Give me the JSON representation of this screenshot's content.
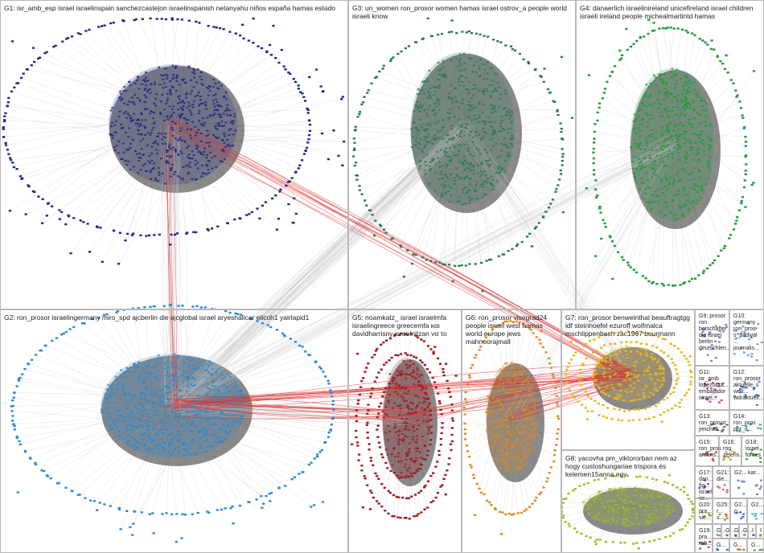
{
  "colors": {
    "background": "#ffffff",
    "panel_border": "#b9b9b9",
    "intra_edge": "#c8c8c8",
    "inter_edge": "#e03030",
    "shadow": "#2a2a2a"
  },
  "groups": [
    {
      "id": "G1",
      "title": "G1: isr_amb_esp israel israelinspain sanchezcastejon israelinspanish netanyahu niños españa hamas estado",
      "color": "#1f2a80",
      "icon": "person-icon"
    },
    {
      "id": "G2",
      "title": "G2: ron_prosor israelingermany miro_spd ajcberlin die ajcglobal israel aryeshalicar elicoh1 yairlapid1",
      "color": "#2a8ad4",
      "icon": "person-icon"
    },
    {
      "id": "G3",
      "title": "G3: un_women ron_prosor women hamas israel ostrov_a people world israeli know",
      "color": "#2d7a56",
      "icon": "person-icon"
    },
    {
      "id": "G4",
      "title": "G4: danaerlich israelinireland unicefireland israel children israeli ireland people michealmartintd hamas",
      "color": "#1e9a3a",
      "icon": "person-icon"
    },
    {
      "id": "G5",
      "title": "G5: noamkatz_ israel israelmfa israelingreece greecemfa και davidharrisny israelnitzan να το",
      "color": "#a01a20",
      "icon": "person-icon"
    },
    {
      "id": "G6",
      "title": "G6: ron_prosor visegrad24 people israel west hamas world europe jews mahnoorajmall",
      "color": "#e08a20",
      "icon": "person-icon"
    },
    {
      "id": "G7",
      "title": "G7: ron_prosor benweinthal beauftragtgg idf steinhoefel ezuroff wolfmalca mschlippenbach zac1967 buurmann",
      "color": "#e6b81e",
      "icon": "person-icon"
    },
    {
      "id": "G8",
      "title": "G8: yacovha pm_viktororban nem az hogy custoshungariae trispora és kelemen15anna egy",
      "color": "#9ac21e",
      "icon": "person-icon"
    },
    {
      "id": "G9",
      "title": "G9: prosor ron botschafter die israel berlin deutschlen...",
      "color": "#9a7ac8",
      "icon": "person-icon"
    },
    {
      "id": "G10",
      "title": "G10: germany ron_pros s_padiyal ... journalis...",
      "color": "#7a9ad8",
      "icon": "person-icon"
    },
    {
      "id": "G11",
      "title": "G11: isr_amb lopezobra... embajador israel...",
      "color": "#b84aa0",
      "icon": "person-icon"
    },
    {
      "id": "G12",
      "title": "G12: ron_prosor aktuelle_s welt... wdraktuell...",
      "color": "#4a88c8",
      "icon": "person-icon"
    },
    {
      "id": "G13",
      "title": "G13: ron_prosor jreichelt...",
      "color": "#6a6a6a",
      "icon": "person-icon"
    },
    {
      "id": "G14",
      "title": "G14: ron_pros phr_il...",
      "color": "#3ab0a0",
      "icon": "person-icon"
    },
    {
      "id": "G15",
      "title": "G15: ron_pros antons...",
      "color": "#d04a4a",
      "icon": "person-icon"
    },
    {
      "id": "G16",
      "title": "G16: ron_ zelens...",
      "color": "#c8a040",
      "icon": "person-icon"
    },
    {
      "id": "G18",
      "title": "G18: israel forces",
      "color": "#4aa040",
      "icon": "person-icon"
    },
    {
      "id": "G17",
      "title": "G17: dan... fig... israel isr...",
      "color": "#8a4ac8",
      "icon": "person-icon"
    },
    {
      "id": "G21",
      "title": "G21: die...",
      "color": "#c86a8a",
      "icon": "person-icon"
    },
    {
      "id": "G22",
      "title": "G2... kar...",
      "color": "#6a8ac8",
      "icon": "person-icon"
    },
    {
      "id": "G20",
      "title": "G20: pra... sie...",
      "color": "#a0a040",
      "icon": "person-icon"
    },
    {
      "id": "G25",
      "title": "G25: r... s...",
      "color": "#d07a30",
      "icon": "person-icon"
    },
    {
      "id": "G26",
      "title": "G2... p...",
      "color": "#4a6ad0",
      "icon": "person-icon"
    },
    {
      "id": "G27",
      "title": "G2...",
      "color": "#50b0d0",
      "icon": "person-icon"
    },
    {
      "id": "G19",
      "title": "G19: pra... rab...",
      "color": "#b04a70",
      "icon": "person-icon"
    },
    {
      "id": "G30",
      "title": "G...",
      "color": "#7aa050",
      "icon": "person-icon"
    },
    {
      "id": "G31",
      "title": "G...",
      "color": "#c05050",
      "icon": "person-icon"
    },
    {
      "id": "G32",
      "title": "G...",
      "color": "#5050c0",
      "icon": "person-icon"
    },
    {
      "id": "G33",
      "title": "G...",
      "color": "#50a0a0",
      "icon": "person-icon"
    },
    {
      "id": "G34",
      "title": "G...",
      "color": "#a05090",
      "icon": "person-icon"
    },
    {
      "id": "G35",
      "title": "G...",
      "color": "#909030",
      "icon": "person-icon"
    },
    {
      "id": "G36",
      "title": "G...",
      "color": "#3080b0",
      "icon": "person-icon"
    },
    {
      "id": "G37",
      "title": "G...",
      "color": "#b07030",
      "icon": "person-icon"
    },
    {
      "id": "G38",
      "title": "G...",
      "color": "#60a060",
      "icon": "person-icon"
    }
  ]
}
